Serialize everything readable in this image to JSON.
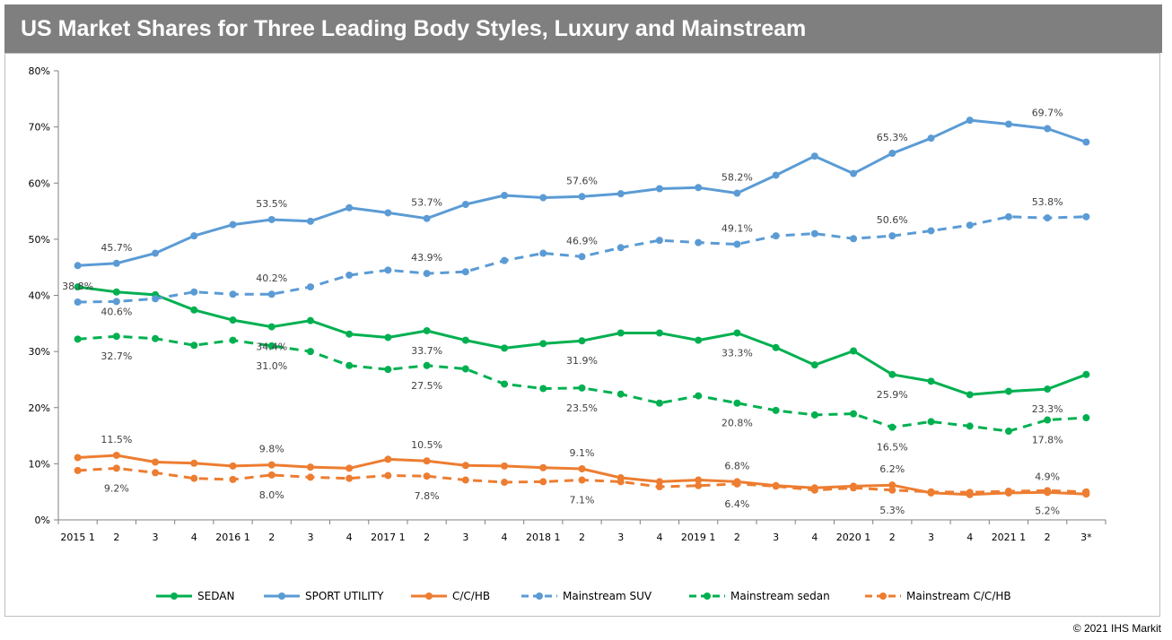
{
  "header": {
    "title": "US Market Shares for Three Leading Body Styles, Luxury and Mainstream"
  },
  "footer": {
    "copyright": "© 2021 IHS Markit"
  },
  "chart_data": {
    "type": "line",
    "title": "US Market Shares for Three Leading Body Styles, Luxury and Mainstream",
    "xlabel": "",
    "ylabel": "",
    "ylim": [
      0,
      80
    ],
    "y_ticks": [
      "0%",
      "10%",
      "20%",
      "30%",
      "40%",
      "50%",
      "60%",
      "70%",
      "80%"
    ],
    "categories": [
      "2015 1",
      "2",
      "3",
      "4",
      "2016 1",
      "2",
      "3",
      "4",
      "2017 1",
      "2",
      "3",
      "4",
      "2018 1",
      "2",
      "3",
      "4",
      "2019 1",
      "2",
      "3",
      "4",
      "2020 1",
      "2",
      "3",
      "4",
      "2021 1",
      "2",
      "3*"
    ],
    "legend_position": "bottom",
    "grid": false,
    "series": [
      {
        "name": "SEDAN",
        "color": "#00b050",
        "dashed": false,
        "values": [
          41.5,
          40.6,
          40.1,
          37.4,
          35.6,
          34.4,
          35.5,
          33.1,
          32.5,
          33.7,
          32.0,
          30.6,
          31.4,
          31.9,
          33.3,
          33.3,
          32.0,
          33.3,
          30.7,
          27.6,
          30.1,
          25.9,
          24.7,
          22.3,
          22.9,
          23.3,
          25.9
        ],
        "labels": {
          "1": "40.6%",
          "5": "34.4%",
          "9": "33.7%",
          "13": "31.9%",
          "17": "33.3%",
          "21": "25.9%",
          "25": "23.3%"
        }
      },
      {
        "name": "SPORT UTILITY",
        "color": "#5b9bd5",
        "dashed": false,
        "values": [
          45.3,
          45.7,
          47.5,
          50.6,
          52.6,
          53.5,
          53.2,
          55.6,
          54.7,
          53.7,
          56.2,
          57.8,
          57.4,
          57.6,
          58.1,
          59.0,
          59.2,
          58.2,
          61.4,
          64.8,
          61.7,
          65.3,
          68.0,
          71.2,
          70.5,
          69.7,
          67.3
        ],
        "labels": {
          "1": "45.7%",
          "5": "53.5%",
          "9": "53.7%",
          "13": "57.6%",
          "17": "58.2%",
          "21": "65.3%",
          "25": "69.7%"
        }
      },
      {
        "name": "C/C/HB",
        "color": "#ed7d31",
        "dashed": false,
        "values": [
          11.1,
          11.5,
          10.3,
          10.1,
          9.6,
          9.8,
          9.4,
          9.2,
          10.8,
          10.5,
          9.7,
          9.6,
          9.3,
          9.1,
          7.5,
          6.8,
          7.1,
          6.8,
          6.1,
          5.7,
          6.0,
          6.2,
          4.8,
          4.5,
          4.8,
          4.9,
          4.6
        ],
        "labels": {
          "1": "11.5%",
          "5": "9.8%",
          "9": "10.5%",
          "13": "9.1%",
          "17": "6.8%",
          "21": "6.2%",
          "25": "4.9%"
        }
      },
      {
        "name": "Mainstream SUV",
        "color": "#5b9bd5",
        "dashed": true,
        "values": [
          38.8,
          38.9,
          39.4,
          40.6,
          40.2,
          40.2,
          41.5,
          43.6,
          44.5,
          43.9,
          44.2,
          46.2,
          47.5,
          46.9,
          48.5,
          49.8,
          49.4,
          49.1,
          50.6,
          51.0,
          50.1,
          50.6,
          51.5,
          52.5,
          54.0,
          53.8,
          54.0
        ],
        "labels": {
          "0": "38.8%",
          "5": "40.2%",
          "9": "43.9%",
          "13": "46.9%",
          "17": "49.1%",
          "21": "50.6%",
          "25": "53.8%"
        }
      },
      {
        "name": "Mainstream sedan",
        "color": "#00b050",
        "dashed": true,
        "values": [
          32.2,
          32.7,
          32.3,
          31.1,
          32.0,
          31.0,
          30.0,
          27.5,
          26.8,
          27.5,
          26.9,
          24.2,
          23.4,
          23.5,
          22.4,
          20.8,
          22.1,
          20.8,
          19.5,
          18.7,
          18.9,
          16.5,
          17.5,
          16.7,
          15.8,
          17.8,
          18.2
        ],
        "labels": {
          "1": "32.7%",
          "5": "31.0%",
          "9": "27.5%",
          "13": "23.5%",
          "17": "20.8%",
          "21": "16.5%",
          "25": "17.8%"
        }
      },
      {
        "name": "Mainstream C/C/HB",
        "color": "#ed7d31",
        "dashed": true,
        "values": [
          8.8,
          9.2,
          8.4,
          7.4,
          7.2,
          8.0,
          7.6,
          7.4,
          7.9,
          7.8,
          7.1,
          6.7,
          6.8,
          7.1,
          6.8,
          5.9,
          6.1,
          6.4,
          6.0,
          5.3,
          5.7,
          5.3,
          5.0,
          4.9,
          5.1,
          5.2,
          5.0
        ],
        "labels": {
          "1": "9.2%",
          "5": "8.0%",
          "9": "7.8%",
          "13": "7.1%",
          "17": "6.4%",
          "21": "5.3%",
          "25": "5.2%"
        }
      }
    ]
  }
}
